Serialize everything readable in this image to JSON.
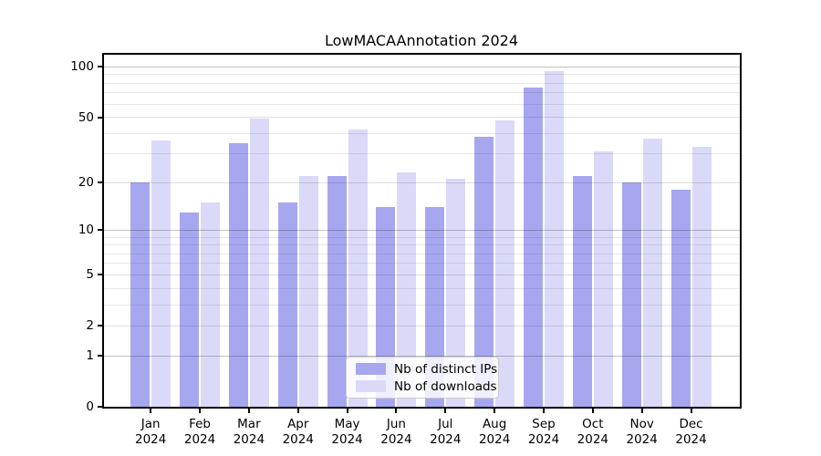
{
  "figure": {
    "background": "#ffffff"
  },
  "chart_data": {
    "type": "bar",
    "title": "LowMACAAnnotation 2024",
    "categories": [
      "Jan",
      "Feb",
      "Mar",
      "Apr",
      "May",
      "Jun",
      "Jul",
      "Aug",
      "Sep",
      "Oct",
      "Nov",
      "Dec"
    ],
    "x_tick_year": "2024",
    "series": [
      {
        "name": "Nb of distinct IPs",
        "color": "#a7a7f0",
        "values": [
          20,
          13,
          35,
          15,
          22,
          14,
          14,
          38,
          75,
          22,
          20,
          18
        ]
      },
      {
        "name": "Nb of downloads",
        "color": "#dadaf8",
        "values": [
          36,
          15,
          49,
          22,
          42,
          23,
          21,
          48,
          94,
          31,
          37,
          33
        ]
      }
    ],
    "xlabel": "",
    "ylabel": "",
    "yscale": "log1p",
    "ylim": [
      0,
      118
    ],
    "yticks": [
      0,
      1,
      2,
      5,
      10,
      20,
      50,
      100
    ],
    "gridlines_major": [
      1,
      10,
      100
    ],
    "gridlines_sub": [
      2,
      5,
      20,
      50
    ],
    "gridlines_minor": [
      3,
      4,
      6,
      7,
      8,
      9,
      30,
      40,
      60,
      70,
      80,
      90
    ],
    "grid": true,
    "grid_on_top_of_bars": true,
    "legend_position": "lower-center"
  }
}
